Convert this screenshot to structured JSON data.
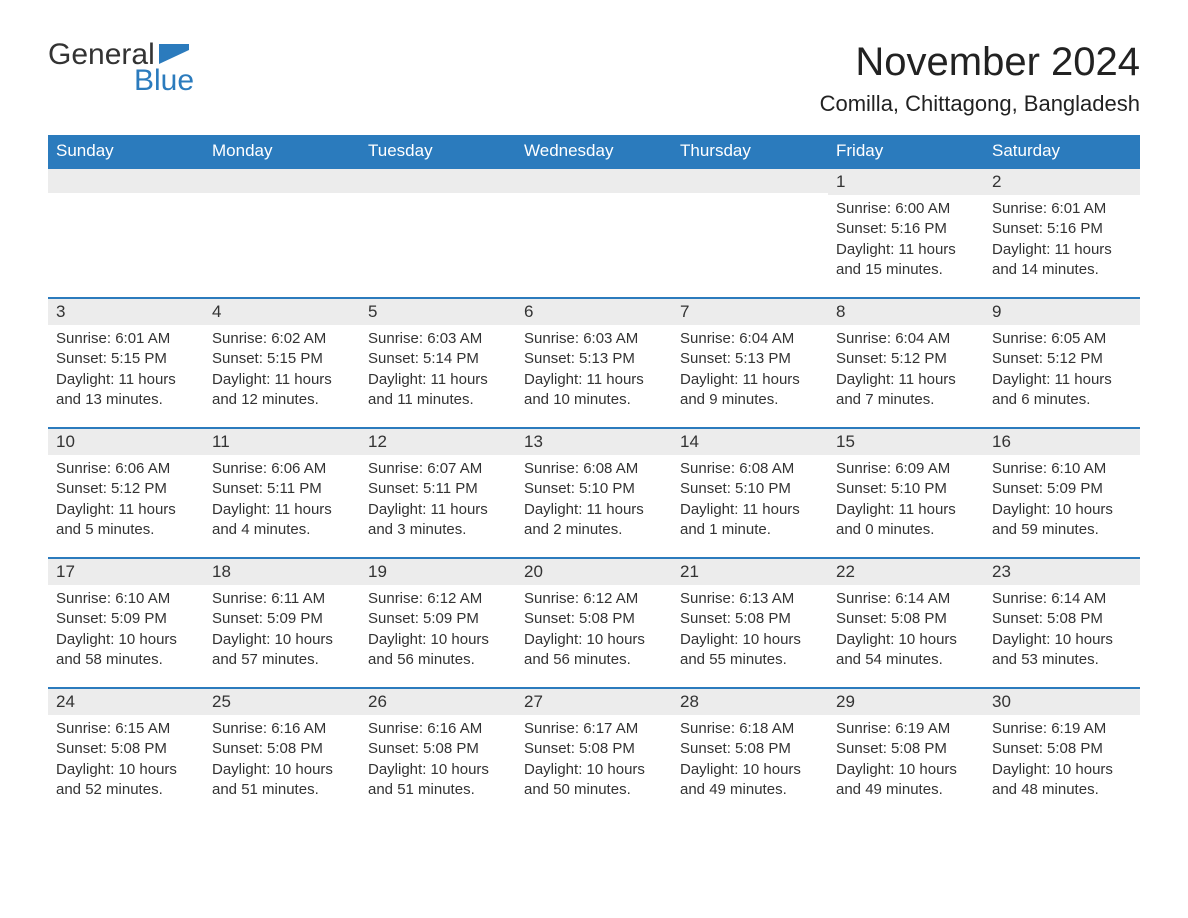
{
  "logo": {
    "word1": "General",
    "word2": "Blue",
    "flag_color": "#2b7bbd"
  },
  "title": "November 2024",
  "location": "Comilla, Chittagong, Bangladesh",
  "colors": {
    "header_bg": "#2b7bbd",
    "header_text": "#ffffff",
    "daynum_bg": "#ececec",
    "row_border": "#2b7bbd",
    "body_text": "#333333",
    "page_bg": "#ffffff"
  },
  "fonts": {
    "title_size": 40,
    "location_size": 22,
    "header_size": 17,
    "body_size": 15
  },
  "day_headers": [
    "Sunday",
    "Monday",
    "Tuesday",
    "Wednesday",
    "Thursday",
    "Friday",
    "Saturday"
  ],
  "weeks": [
    [
      null,
      null,
      null,
      null,
      null,
      {
        "n": "1",
        "sunrise": "Sunrise: 6:00 AM",
        "sunset": "Sunset: 5:16 PM",
        "daylight": "Daylight: 11 hours and 15 minutes."
      },
      {
        "n": "2",
        "sunrise": "Sunrise: 6:01 AM",
        "sunset": "Sunset: 5:16 PM",
        "daylight": "Daylight: 11 hours and 14 minutes."
      }
    ],
    [
      {
        "n": "3",
        "sunrise": "Sunrise: 6:01 AM",
        "sunset": "Sunset: 5:15 PM",
        "daylight": "Daylight: 11 hours and 13 minutes."
      },
      {
        "n": "4",
        "sunrise": "Sunrise: 6:02 AM",
        "sunset": "Sunset: 5:15 PM",
        "daylight": "Daylight: 11 hours and 12 minutes."
      },
      {
        "n": "5",
        "sunrise": "Sunrise: 6:03 AM",
        "sunset": "Sunset: 5:14 PM",
        "daylight": "Daylight: 11 hours and 11 minutes."
      },
      {
        "n": "6",
        "sunrise": "Sunrise: 6:03 AM",
        "sunset": "Sunset: 5:13 PM",
        "daylight": "Daylight: 11 hours and 10 minutes."
      },
      {
        "n": "7",
        "sunrise": "Sunrise: 6:04 AM",
        "sunset": "Sunset: 5:13 PM",
        "daylight": "Daylight: 11 hours and 9 minutes."
      },
      {
        "n": "8",
        "sunrise": "Sunrise: 6:04 AM",
        "sunset": "Sunset: 5:12 PM",
        "daylight": "Daylight: 11 hours and 7 minutes."
      },
      {
        "n": "9",
        "sunrise": "Sunrise: 6:05 AM",
        "sunset": "Sunset: 5:12 PM",
        "daylight": "Daylight: 11 hours and 6 minutes."
      }
    ],
    [
      {
        "n": "10",
        "sunrise": "Sunrise: 6:06 AM",
        "sunset": "Sunset: 5:12 PM",
        "daylight": "Daylight: 11 hours and 5 minutes."
      },
      {
        "n": "11",
        "sunrise": "Sunrise: 6:06 AM",
        "sunset": "Sunset: 5:11 PM",
        "daylight": "Daylight: 11 hours and 4 minutes."
      },
      {
        "n": "12",
        "sunrise": "Sunrise: 6:07 AM",
        "sunset": "Sunset: 5:11 PM",
        "daylight": "Daylight: 11 hours and 3 minutes."
      },
      {
        "n": "13",
        "sunrise": "Sunrise: 6:08 AM",
        "sunset": "Sunset: 5:10 PM",
        "daylight": "Daylight: 11 hours and 2 minutes."
      },
      {
        "n": "14",
        "sunrise": "Sunrise: 6:08 AM",
        "sunset": "Sunset: 5:10 PM",
        "daylight": "Daylight: 11 hours and 1 minute."
      },
      {
        "n": "15",
        "sunrise": "Sunrise: 6:09 AM",
        "sunset": "Sunset: 5:10 PM",
        "daylight": "Daylight: 11 hours and 0 minutes."
      },
      {
        "n": "16",
        "sunrise": "Sunrise: 6:10 AM",
        "sunset": "Sunset: 5:09 PM",
        "daylight": "Daylight: 10 hours and 59 minutes."
      }
    ],
    [
      {
        "n": "17",
        "sunrise": "Sunrise: 6:10 AM",
        "sunset": "Sunset: 5:09 PM",
        "daylight": "Daylight: 10 hours and 58 minutes."
      },
      {
        "n": "18",
        "sunrise": "Sunrise: 6:11 AM",
        "sunset": "Sunset: 5:09 PM",
        "daylight": "Daylight: 10 hours and 57 minutes."
      },
      {
        "n": "19",
        "sunrise": "Sunrise: 6:12 AM",
        "sunset": "Sunset: 5:09 PM",
        "daylight": "Daylight: 10 hours and 56 minutes."
      },
      {
        "n": "20",
        "sunrise": "Sunrise: 6:12 AM",
        "sunset": "Sunset: 5:08 PM",
        "daylight": "Daylight: 10 hours and 56 minutes."
      },
      {
        "n": "21",
        "sunrise": "Sunrise: 6:13 AM",
        "sunset": "Sunset: 5:08 PM",
        "daylight": "Daylight: 10 hours and 55 minutes."
      },
      {
        "n": "22",
        "sunrise": "Sunrise: 6:14 AM",
        "sunset": "Sunset: 5:08 PM",
        "daylight": "Daylight: 10 hours and 54 minutes."
      },
      {
        "n": "23",
        "sunrise": "Sunrise: 6:14 AM",
        "sunset": "Sunset: 5:08 PM",
        "daylight": "Daylight: 10 hours and 53 minutes."
      }
    ],
    [
      {
        "n": "24",
        "sunrise": "Sunrise: 6:15 AM",
        "sunset": "Sunset: 5:08 PM",
        "daylight": "Daylight: 10 hours and 52 minutes."
      },
      {
        "n": "25",
        "sunrise": "Sunrise: 6:16 AM",
        "sunset": "Sunset: 5:08 PM",
        "daylight": "Daylight: 10 hours and 51 minutes."
      },
      {
        "n": "26",
        "sunrise": "Sunrise: 6:16 AM",
        "sunset": "Sunset: 5:08 PM",
        "daylight": "Daylight: 10 hours and 51 minutes."
      },
      {
        "n": "27",
        "sunrise": "Sunrise: 6:17 AM",
        "sunset": "Sunset: 5:08 PM",
        "daylight": "Daylight: 10 hours and 50 minutes."
      },
      {
        "n": "28",
        "sunrise": "Sunrise: 6:18 AM",
        "sunset": "Sunset: 5:08 PM",
        "daylight": "Daylight: 10 hours and 49 minutes."
      },
      {
        "n": "29",
        "sunrise": "Sunrise: 6:19 AM",
        "sunset": "Sunset: 5:08 PM",
        "daylight": "Daylight: 10 hours and 49 minutes."
      },
      {
        "n": "30",
        "sunrise": "Sunrise: 6:19 AM",
        "sunset": "Sunset: 5:08 PM",
        "daylight": "Daylight: 10 hours and 48 minutes."
      }
    ]
  ]
}
